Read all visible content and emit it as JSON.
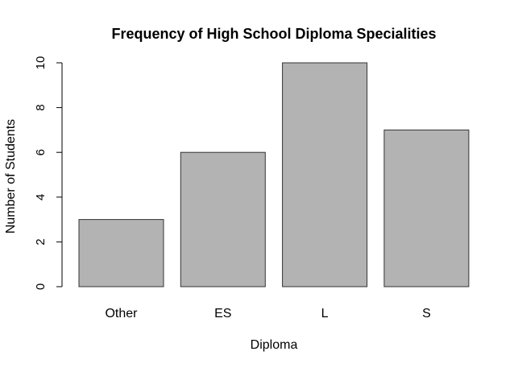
{
  "chart_data": {
    "type": "bar",
    "title": "Frequency of High School Diploma Specialities",
    "xlabel": "Diploma",
    "ylabel": "Number of Students",
    "categories": [
      "Other",
      "ES",
      "L",
      "S"
    ],
    "values": [
      3,
      6,
      10,
      7
    ],
    "ylim": [
      0,
      10
    ],
    "yticks": [
      "0",
      "2",
      "4",
      "6",
      "8",
      "10"
    ],
    "grid": false,
    "legend": "none",
    "colors": {
      "bar_fill": "#b3b3b3",
      "bar_stroke": "#333333",
      "axis": "#000000"
    }
  }
}
